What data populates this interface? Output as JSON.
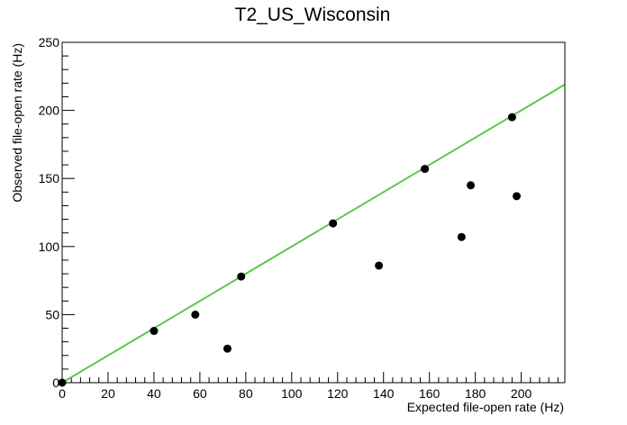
{
  "chart_data": {
    "type": "scatter",
    "title": "T2_US_Wisconsin",
    "xlabel": "Expected file-open rate (Hz)",
    "ylabel": "Observed file-open rate (Hz)",
    "xlim": [
      0,
      219
    ],
    "ylim": [
      0,
      250
    ],
    "grid": false,
    "x_ticks": [
      0,
      20,
      40,
      60,
      80,
      100,
      120,
      140,
      160,
      180,
      200
    ],
    "y_ticks": [
      0,
      50,
      100,
      150,
      200,
      250
    ],
    "x_tick_labels": [
      "0",
      "20",
      "40",
      "60",
      "80",
      "100",
      "120",
      "140",
      "160",
      "180",
      "200"
    ],
    "y_tick_labels": [
      "0",
      "50",
      "100",
      "150",
      "200",
      "250"
    ],
    "points": [
      {
        "x": 0,
        "y": 0
      },
      {
        "x": 40,
        "y": 38
      },
      {
        "x": 58,
        "y": 50
      },
      {
        "x": 72,
        "y": 25
      },
      {
        "x": 78,
        "y": 78
      },
      {
        "x": 118,
        "y": 117
      },
      {
        "x": 138,
        "y": 86
      },
      {
        "x": 158,
        "y": 157
      },
      {
        "x": 174,
        "y": 107
      },
      {
        "x": 178,
        "y": 145
      },
      {
        "x": 196,
        "y": 195
      },
      {
        "x": 198,
        "y": 137
      }
    ],
    "reference_line": {
      "x": [
        0,
        219
      ],
      "y": [
        0,
        219
      ]
    },
    "colors": {
      "points": "#000000",
      "reference_line": "#5ac84a",
      "axes": "#000000"
    }
  }
}
